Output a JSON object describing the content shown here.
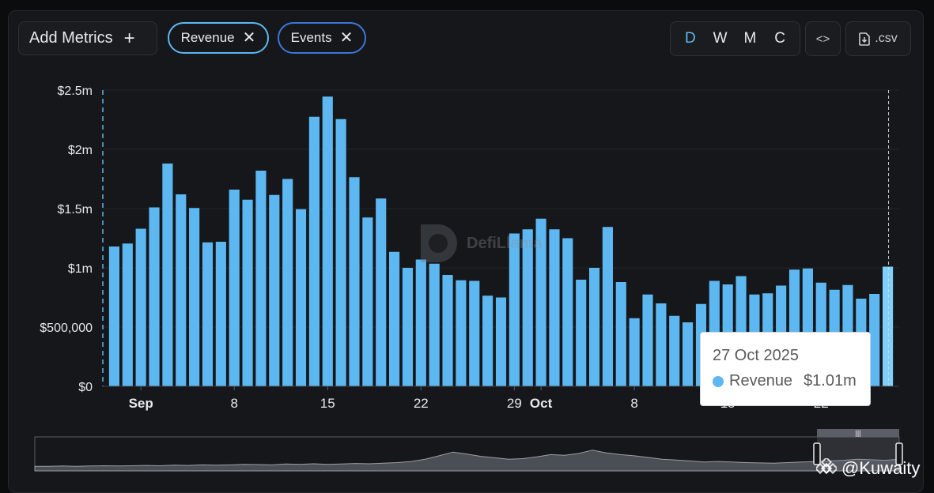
{
  "toolbar": {
    "add_metrics_label": "Add Metrics",
    "add_icon": "+",
    "chips": [
      {
        "label": "Revenue",
        "close_icon": "✕",
        "color": "#5db8f2"
      },
      {
        "label": "Events",
        "close_icon": "✕",
        "color": "#3a78d8"
      }
    ],
    "periods": [
      "D",
      "W",
      "M",
      "C"
    ],
    "active_period": "D",
    "embed_label": "<>",
    "csv_label": ".csv"
  },
  "tooltip": {
    "date": "27 Oct 2025",
    "series": "Revenue",
    "value": "$1.01m"
  },
  "brand": {
    "name": "DefiLlama"
  },
  "watermark": {
    "label": "@Kuwaity"
  },
  "colors": {
    "bar": "#5db8f2",
    "background": "#16171a",
    "grid": "#22252a",
    "accent_blue": "#3a78d8"
  },
  "chart_data": {
    "type": "bar",
    "series": [
      {
        "name": "Revenue",
        "x": [
          "2025-08-30",
          "2025-08-31",
          "2025-09-01",
          "2025-09-02",
          "2025-09-03",
          "2025-09-04",
          "2025-09-05",
          "2025-09-06",
          "2025-09-07",
          "2025-09-08",
          "2025-09-09",
          "2025-09-10",
          "2025-09-11",
          "2025-09-12",
          "2025-09-13",
          "2025-09-14",
          "2025-09-15",
          "2025-09-16",
          "2025-09-17",
          "2025-09-18",
          "2025-09-19",
          "2025-09-20",
          "2025-09-21",
          "2025-09-22",
          "2025-09-23",
          "2025-09-24",
          "2025-09-25",
          "2025-09-26",
          "2025-09-27",
          "2025-09-28",
          "2025-09-29",
          "2025-09-30",
          "2025-10-01",
          "2025-10-02",
          "2025-10-03",
          "2025-10-04",
          "2025-10-05",
          "2025-10-06",
          "2025-10-07",
          "2025-10-08",
          "2025-10-09",
          "2025-10-10",
          "2025-10-11",
          "2025-10-12",
          "2025-10-13",
          "2025-10-14",
          "2025-10-15",
          "2025-10-16",
          "2025-10-17",
          "2025-10-18",
          "2025-10-19",
          "2025-10-20",
          "2025-10-21",
          "2025-10-22",
          "2025-10-23",
          "2025-10-24",
          "2025-10-25",
          "2025-10-26",
          "2025-10-27"
        ],
        "values": [
          1180000,
          1205000,
          1330000,
          1510000,
          1880000,
          1620000,
          1505000,
          1215000,
          1220000,
          1660000,
          1575000,
          1820000,
          1615000,
          1750000,
          1495000,
          2275000,
          2445000,
          2255000,
          1765000,
          1425000,
          1585000,
          1135000,
          1000000,
          1070000,
          1035000,
          940000,
          895000,
          890000,
          765000,
          750000,
          1290000,
          1325000,
          1415000,
          1325000,
          1250000,
          900000,
          1000000,
          1345000,
          880000,
          575000,
          775000,
          700000,
          595000,
          540000,
          695000,
          890000,
          860000,
          930000,
          775000,
          785000,
          850000,
          985000,
          995000,
          875000,
          815000,
          855000,
          740000,
          780000,
          1010000
        ]
      }
    ],
    "y_ticks": [
      "$0",
      "$500,000",
      "$1m",
      "$1.5m",
      "$2m",
      "$2.5m"
    ],
    "ylim": [
      0,
      2500000
    ],
    "x_tick_labels": [
      {
        "label": "Sep",
        "date": "2025-09-01",
        "bold": true
      },
      {
        "label": "8",
        "date": "2025-09-08",
        "bold": false
      },
      {
        "label": "15",
        "date": "2025-09-15",
        "bold": false
      },
      {
        "label": "22",
        "date": "2025-09-22",
        "bold": false
      },
      {
        "label": "29",
        "date": "2025-09-29",
        "bold": false
      },
      {
        "label": "Oct",
        "date": "2025-10-01",
        "bold": true
      },
      {
        "label": "8",
        "date": "2025-10-08",
        "bold": false
      },
      {
        "label": "15",
        "date": "2025-10-15",
        "bold": false
      },
      {
        "label": "22",
        "date": "2025-10-22",
        "bold": false
      }
    ],
    "highlight_date": "2025-10-27",
    "grid": true,
    "brush_series": [
      0.05,
      0.05,
      0.06,
      0.05,
      0.06,
      0.07,
      0.06,
      0.07,
      0.08,
      0.07,
      0.09,
      0.08,
      0.1,
      0.09,
      0.1,
      0.12,
      0.11,
      0.1,
      0.13,
      0.12,
      0.14,
      0.12,
      0.13,
      0.15,
      0.14,
      0.16,
      0.18,
      0.22,
      0.3,
      0.42,
      0.55,
      0.48,
      0.4,
      0.35,
      0.3,
      0.32,
      0.38,
      0.46,
      0.44,
      0.5,
      0.62,
      0.52,
      0.46,
      0.42,
      0.36,
      0.3,
      0.27,
      0.24,
      0.2,
      0.22,
      0.2,
      0.18,
      0.17,
      0.16,
      0.18,
      0.2,
      0.22,
      0.24,
      0.26,
      0.3,
      0.28,
      0.26,
      0.3
    ]
  }
}
